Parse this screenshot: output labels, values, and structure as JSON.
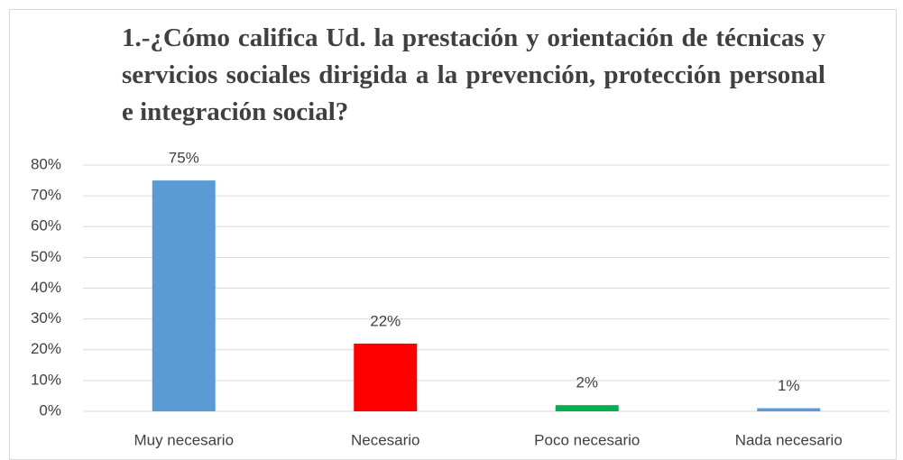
{
  "chart_data": {
    "type": "bar",
    "title": "1.-¿Cómo califica Ud. la prestación y orientación de técnicas y servicios sociales dirigida a la prevención, protección personal e integración social?",
    "categories": [
      "Muy necesario",
      "Necesario",
      "Poco necesario",
      "Nada necesario"
    ],
    "values": [
      75,
      22,
      2,
      1
    ],
    "value_labels": [
      "75%",
      "22%",
      "2%",
      "1%"
    ],
    "colors": [
      "#5b9bd5",
      "#ff0000",
      "#00b050",
      "#5b9bd5"
    ],
    "ylim": [
      0,
      80
    ],
    "yticks": [
      {
        "value": 0,
        "label": "0%"
      },
      {
        "value": 10,
        "label": "10%"
      },
      {
        "value": 20,
        "label": "20%"
      },
      {
        "value": 30,
        "label": "30%"
      },
      {
        "value": 40,
        "label": "40%"
      },
      {
        "value": 50,
        "label": "50%"
      },
      {
        "value": 60,
        "label": "60%"
      },
      {
        "value": 70,
        "label": "70%"
      },
      {
        "value": 80,
        "label": "80%"
      }
    ],
    "grid": true
  }
}
